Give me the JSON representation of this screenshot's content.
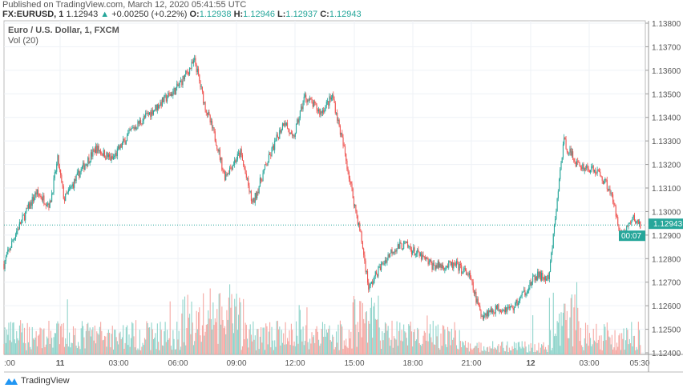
{
  "header": {
    "published": "Published on TradingView.com, March 12, 2020 05:41:55 UTC",
    "symbol": "FX:EURUSD, 1",
    "last": "1.12943",
    "change": "+0.00250 (+0.22%)",
    "o_label": "O:",
    "o": "1.12938",
    "h_label": "H:",
    "h": "1.12946",
    "l_label": "L:",
    "l": "1.12937",
    "c_label": "C:",
    "c": "1.12943"
  },
  "legend": {
    "title": "Euro / U.S. Dollar, 1, FXCM",
    "indicator": "Vol (20)"
  },
  "footer": {
    "brand": "TradingView"
  },
  "colors": {
    "up": "#26a69a",
    "down": "#ef5350",
    "vol_up": "#8fd4cb",
    "vol_down": "#f5a8a3",
    "grid": "#eef1f6"
  },
  "chart_data": {
    "type": "candlestick",
    "interval": "1 minute",
    "ylim": [
      1.124,
      1.138
    ],
    "y_ticks": [
      "1.13800",
      "1.13700",
      "1.13600",
      "1.13500",
      "1.13400",
      "1.13300",
      "1.13200",
      "1.13100",
      "1.13000",
      "1.12900",
      "1.12800",
      "1.12700",
      "1.12600",
      "1.12500",
      "1.12400"
    ],
    "x_ticks": [
      ":00",
      "11",
      "03:00",
      "06:00",
      "09:00",
      "12:00",
      "15:00",
      "18:00",
      "21:00",
      "12",
      "03:00",
      "05:30"
    ],
    "last_price_label": "1.12943",
    "countdown": "00:07",
    "price_path": [
      [
        "03-10 21:07",
        1.12777
      ],
      [
        "03-10 21:44",
        1.12913
      ],
      [
        "03-10 22:46",
        1.1308
      ],
      [
        "03-10 23:28",
        1.1303
      ],
      [
        "03-10 23:52",
        1.1322
      ],
      [
        "03-11 00:12",
        1.1305
      ],
      [
        "03-11 01:01",
        1.1317
      ],
      [
        "03-11 01:50",
        1.1327
      ],
      [
        "03-11 02:39",
        1.1322
      ],
      [
        "03-11 03:41",
        1.1335
      ],
      [
        "03-11 05:07",
        1.1346
      ],
      [
        "03-11 05:56",
        1.1352
      ],
      [
        "03-11 06:53",
        1.1364
      ],
      [
        "03-11 07:22",
        1.1346
      ],
      [
        "03-11 08:00",
        1.1329
      ],
      [
        "03-11 08:24",
        1.1315
      ],
      [
        "03-11 09:13",
        1.1325
      ],
      [
        "03-11 09:50",
        1.1303
      ],
      [
        "03-11 10:27",
        1.1318
      ],
      [
        "03-11 11:28",
        1.1339
      ],
      [
        "03-11 11:53",
        1.133
      ],
      [
        "03-11 12:30",
        1.1349
      ],
      [
        "03-11 13:19",
        1.1342
      ],
      [
        "03-11 13:56",
        1.1349
      ],
      [
        "03-11 14:33",
        1.1325
      ],
      [
        "03-11 14:57",
        1.1307
      ],
      [
        "03-11 15:22",
        1.129
      ],
      [
        "03-11 15:47",
        1.1267
      ],
      [
        "03-11 16:11",
        1.1274
      ],
      [
        "03-11 17:00",
        1.1284
      ],
      [
        "03-11 17:37",
        1.1286
      ],
      [
        "03-11 19:03",
        1.1277
      ],
      [
        "03-11 20:17",
        1.1277
      ],
      [
        "03-11 20:54",
        1.1273
      ],
      [
        "03-11 21:31",
        1.1256
      ],
      [
        "03-11 22:20",
        1.1259
      ],
      [
        "03-11 23:09",
        1.1259
      ],
      [
        "03-12 00:23",
        1.1273
      ],
      [
        "03-12 00:59",
        1.1271
      ],
      [
        "03-12 01:25",
        1.1305
      ],
      [
        "03-12 01:44",
        1.133
      ],
      [
        "03-12 02:26",
        1.132
      ],
      [
        "03-12 03:28",
        1.1317
      ],
      [
        "03-12 04:05",
        1.131
      ],
      [
        "03-12 04:42",
        1.129
      ],
      [
        "03-12 05:18",
        1.1297
      ],
      [
        "03-12 05:41",
        1.12943
      ]
    ]
  }
}
